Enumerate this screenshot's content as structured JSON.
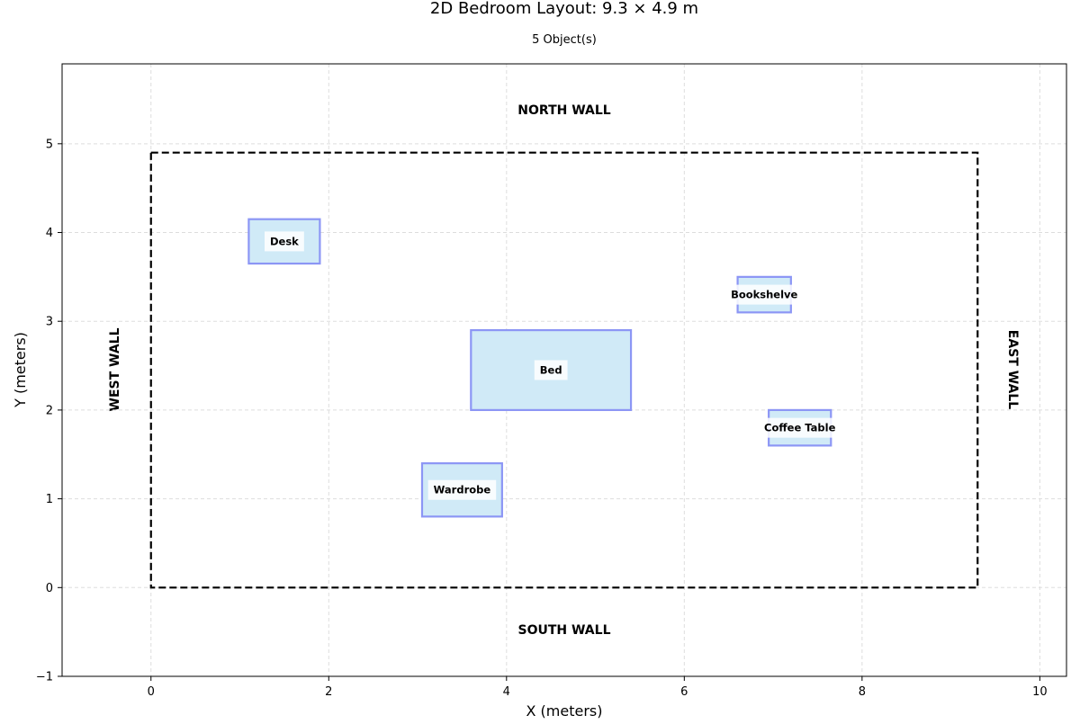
{
  "chart_data": {
    "type": "floor-plan",
    "title": "2D Bedroom Layout: 9.3 × 4.9 m",
    "subtitle": "5 Object(s)",
    "xlabel": "X (meters)",
    "ylabel": "Y (meters)",
    "xlim": [
      -1,
      10.3
    ],
    "ylim": [
      -1,
      5.9
    ],
    "xticks": [
      "0",
      "2",
      "4",
      "6",
      "8",
      "10"
    ],
    "yticks": [
      "−1",
      "0",
      "1",
      "2",
      "3",
      "4",
      "5"
    ],
    "xtick_values": [
      0,
      2,
      4,
      6,
      8,
      10
    ],
    "ytick_values": [
      -1,
      0,
      1,
      2,
      3,
      4,
      5
    ],
    "grid": true,
    "room": {
      "width": 9.3,
      "depth": 4.9
    },
    "walls": {
      "north": "NORTH WALL",
      "south": "SOUTH WALL",
      "west": "WEST WALL",
      "east": "EAST WALL"
    },
    "objects": [
      {
        "name": "Desk",
        "x": 1.1,
        "y": 3.65,
        "width": 0.8,
        "depth": 0.5
      },
      {
        "name": "Bookshelve",
        "x": 6.6,
        "y": 3.1,
        "width": 0.6,
        "depth": 0.4
      },
      {
        "name": "Bed",
        "x": 3.6,
        "y": 2.0,
        "width": 1.8,
        "depth": 0.9
      },
      {
        "name": "Coffee Table",
        "x": 6.95,
        "y": 1.6,
        "width": 0.7,
        "depth": 0.4
      },
      {
        "name": "Wardrobe",
        "x": 3.05,
        "y": 0.8,
        "width": 0.9,
        "depth": 0.6
      }
    ],
    "colors": {
      "object_fill": "#d0eaf7",
      "object_stroke": "#8c96f5",
      "room_outline": "#000000",
      "grid": "#dddddd"
    }
  }
}
